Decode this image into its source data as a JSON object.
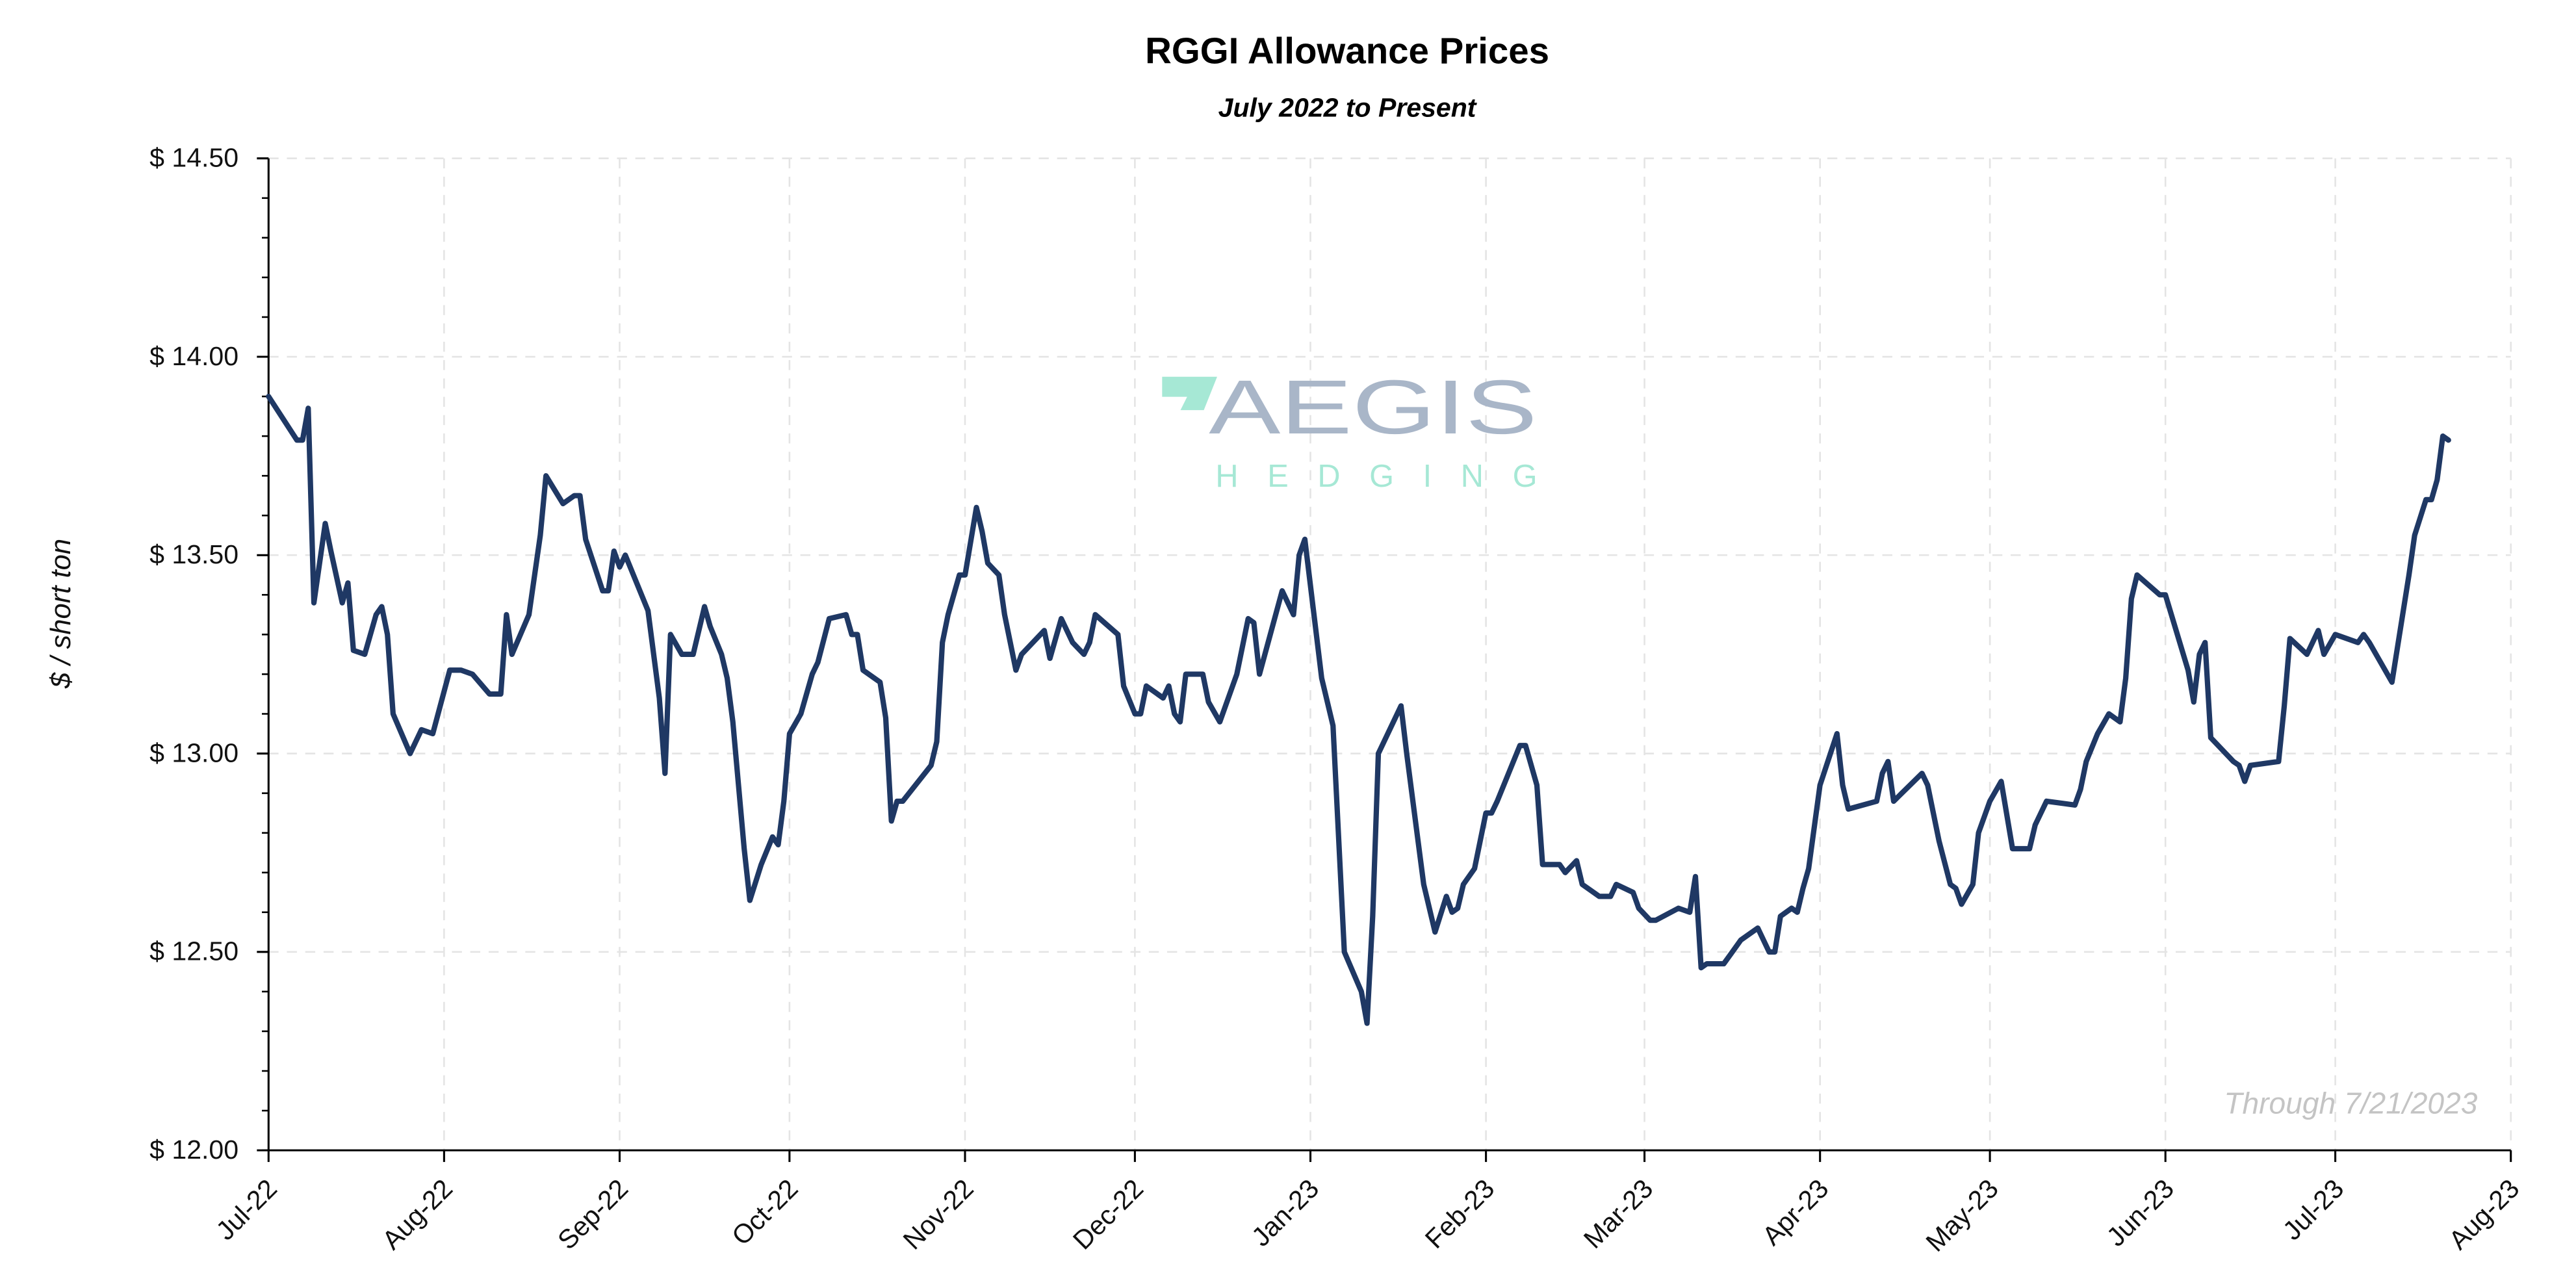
{
  "chart_data": {
    "type": "line",
    "title": "RGGI Allowance Prices",
    "subtitle": "July 2022 to Present",
    "ylabel": "$ / short ton",
    "xlabel": "",
    "annotation": "Through 7/21/2023",
    "watermark": {
      "line1": "AEGIS",
      "line2": "HEDGING"
    },
    "ylim": [
      12.0,
      14.5
    ],
    "xlim": [
      "2022-07-01",
      "2023-08-01"
    ],
    "y_ticks": [
      12.0,
      12.5,
      13.0,
      13.5,
      14.0,
      14.5
    ],
    "y_tick_labels": [
      "$ 12.00",
      "$ 12.50",
      "$ 13.00",
      "$ 13.50",
      "$ 14.00",
      "$ 14.50"
    ],
    "y_minor_step": 0.1,
    "x_ticks": [
      "2022-07-01",
      "2022-08-01",
      "2022-09-01",
      "2022-10-01",
      "2022-11-01",
      "2022-12-01",
      "2023-01-01",
      "2023-02-01",
      "2023-03-01",
      "2023-04-01",
      "2023-05-01",
      "2023-06-01",
      "2023-07-01",
      "2023-08-01"
    ],
    "x_tick_labels": [
      "Jul-22",
      "Aug-22",
      "Sep-22",
      "Oct-22",
      "Nov-22",
      "Dec-22",
      "Jan-23",
      "Feb-23",
      "Mar-23",
      "Apr-23",
      "May-23",
      "Jun-23",
      "Jul-23",
      "Aug-23"
    ],
    "grid": true,
    "colors": {
      "line": "#1f3864",
      "watermark_text": "#a9b6c8",
      "watermark_accent": "#a6e8d5",
      "annotation": "#c4c4c4",
      "grid": "#e4e4e4"
    },
    "points": [
      [
        "2022-07-01",
        13.9
      ],
      [
        "2022-07-06",
        13.79
      ],
      [
        "2022-07-07",
        13.79
      ],
      [
        "2022-07-08",
        13.87
      ],
      [
        "2022-07-09",
        13.38
      ],
      [
        "2022-07-11",
        13.58
      ],
      [
        "2022-07-12",
        13.51
      ],
      [
        "2022-07-14",
        13.38
      ],
      [
        "2022-07-15",
        13.43
      ],
      [
        "2022-07-16",
        13.26
      ],
      [
        "2022-07-18",
        13.25
      ],
      [
        "2022-07-20",
        13.35
      ],
      [
        "2022-07-21",
        13.37
      ],
      [
        "2022-07-22",
        13.3
      ],
      [
        "2022-07-23",
        13.1
      ],
      [
        "2022-07-26",
        13.0
      ],
      [
        "2022-07-28",
        13.06
      ],
      [
        "2022-07-30",
        13.05
      ],
      [
        "2022-08-02",
        13.21
      ],
      [
        "2022-08-04",
        13.21
      ],
      [
        "2022-08-06",
        13.2
      ],
      [
        "2022-08-09",
        13.15
      ],
      [
        "2022-08-11",
        13.15
      ],
      [
        "2022-08-12",
        13.35
      ],
      [
        "2022-08-13",
        13.25
      ],
      [
        "2022-08-16",
        13.35
      ],
      [
        "2022-08-17",
        13.45
      ],
      [
        "2022-08-18",
        13.55
      ],
      [
        "2022-08-19",
        13.7
      ],
      [
        "2022-08-22",
        13.63
      ],
      [
        "2022-08-24",
        13.65
      ],
      [
        "2022-08-25",
        13.65
      ],
      [
        "2022-08-26",
        13.54
      ],
      [
        "2022-08-29",
        13.41
      ],
      [
        "2022-08-30",
        13.41
      ],
      [
        "2022-08-31",
        13.51
      ],
      [
        "2022-09-01",
        13.47
      ],
      [
        "2022-09-02",
        13.5
      ],
      [
        "2022-09-06",
        13.36
      ],
      [
        "2022-09-08",
        13.14
      ],
      [
        "2022-09-09",
        12.95
      ],
      [
        "2022-09-10",
        13.3
      ],
      [
        "2022-09-12",
        13.25
      ],
      [
        "2022-09-14",
        13.25
      ],
      [
        "2022-09-16",
        13.37
      ],
      [
        "2022-09-17",
        13.32
      ],
      [
        "2022-09-19",
        13.25
      ],
      [
        "2022-09-20",
        13.19
      ],
      [
        "2022-09-21",
        13.08
      ],
      [
        "2022-09-23",
        12.76
      ],
      [
        "2022-09-24",
        12.63
      ],
      [
        "2022-09-26",
        12.72
      ],
      [
        "2022-09-28",
        12.79
      ],
      [
        "2022-09-29",
        12.77
      ],
      [
        "2022-09-30",
        12.88
      ],
      [
        "2022-10-01",
        13.05
      ],
      [
        "2022-10-03",
        13.1
      ],
      [
        "2022-10-05",
        13.2
      ],
      [
        "2022-10-06",
        13.23
      ],
      [
        "2022-10-08",
        13.34
      ],
      [
        "2022-10-11",
        13.35
      ],
      [
        "2022-10-12",
        13.3
      ],
      [
        "2022-10-13",
        13.3
      ],
      [
        "2022-10-14",
        13.21
      ],
      [
        "2022-10-17",
        13.18
      ],
      [
        "2022-10-18",
        13.09
      ],
      [
        "2022-10-19",
        12.83
      ],
      [
        "2022-10-20",
        12.88
      ],
      [
        "2022-10-21",
        12.88
      ],
      [
        "2022-10-26",
        12.97
      ],
      [
        "2022-10-27",
        13.03
      ],
      [
        "2022-10-28",
        13.28
      ],
      [
        "2022-10-29",
        13.35
      ],
      [
        "2022-10-31",
        13.45
      ],
      [
        "2022-11-01",
        13.45
      ],
      [
        "2022-11-03",
        13.62
      ],
      [
        "2022-11-04",
        13.56
      ],
      [
        "2022-11-05",
        13.48
      ],
      [
        "2022-11-07",
        13.45
      ],
      [
        "2022-11-08",
        13.35
      ],
      [
        "2022-11-10",
        13.21
      ],
      [
        "2022-11-11",
        13.25
      ],
      [
        "2022-11-15",
        13.31
      ],
      [
        "2022-11-16",
        13.24
      ],
      [
        "2022-11-18",
        13.34
      ],
      [
        "2022-11-20",
        13.28
      ],
      [
        "2022-11-22",
        13.25
      ],
      [
        "2022-11-23",
        13.28
      ],
      [
        "2022-11-24",
        13.35
      ],
      [
        "2022-11-28",
        13.3
      ],
      [
        "2022-11-29",
        13.17
      ],
      [
        "2022-12-01",
        13.1
      ],
      [
        "2022-12-02",
        13.1
      ],
      [
        "2022-12-03",
        13.17
      ],
      [
        "2022-12-06",
        13.14
      ],
      [
        "2022-12-07",
        13.17
      ],
      [
        "2022-12-08",
        13.1
      ],
      [
        "2022-12-09",
        13.08
      ],
      [
        "2022-12-10",
        13.2
      ],
      [
        "2022-12-13",
        13.2
      ],
      [
        "2022-12-14",
        13.13
      ],
      [
        "2022-12-16",
        13.08
      ],
      [
        "2022-12-19",
        13.2
      ],
      [
        "2022-12-21",
        13.34
      ],
      [
        "2022-12-22",
        13.33
      ],
      [
        "2022-12-23",
        13.2
      ],
      [
        "2022-12-27",
        13.41
      ],
      [
        "2022-12-29",
        13.35
      ],
      [
        "2022-12-30",
        13.5
      ],
      [
        "2022-12-31",
        13.54
      ],
      [
        "2023-01-03",
        13.19
      ],
      [
        "2023-01-05",
        13.07
      ],
      [
        "2023-01-07",
        12.5
      ],
      [
        "2023-01-10",
        12.4
      ],
      [
        "2023-01-11",
        12.32
      ],
      [
        "2023-01-12",
        12.59
      ],
      [
        "2023-01-13",
        13.0
      ],
      [
        "2023-01-17",
        13.12
      ],
      [
        "2023-01-18",
        13.0
      ],
      [
        "2023-01-20",
        12.78
      ],
      [
        "2023-01-21",
        12.67
      ],
      [
        "2023-01-23",
        12.55
      ],
      [
        "2023-01-25",
        12.64
      ],
      [
        "2023-01-26",
        12.6
      ],
      [
        "2023-01-27",
        12.61
      ],
      [
        "2023-01-28",
        12.67
      ],
      [
        "2023-01-30",
        12.71
      ],
      [
        "2023-02-01",
        12.85
      ],
      [
        "2023-02-02",
        12.85
      ],
      [
        "2023-02-03",
        12.88
      ],
      [
        "2023-02-07",
        13.02
      ],
      [
        "2023-02-08",
        13.02
      ],
      [
        "2023-02-10",
        12.92
      ],
      [
        "2023-02-11",
        12.72
      ],
      [
        "2023-02-14",
        12.72
      ],
      [
        "2023-02-15",
        12.7
      ],
      [
        "2023-02-17",
        12.73
      ],
      [
        "2023-02-18",
        12.67
      ],
      [
        "2023-02-21",
        12.64
      ],
      [
        "2023-02-23",
        12.64
      ],
      [
        "2023-02-24",
        12.67
      ],
      [
        "2023-02-27",
        12.65
      ],
      [
        "2023-02-28",
        12.61
      ],
      [
        "2023-03-02",
        12.58
      ],
      [
        "2023-03-03",
        12.58
      ],
      [
        "2023-03-07",
        12.61
      ],
      [
        "2023-03-09",
        12.6
      ],
      [
        "2023-03-10",
        12.69
      ],
      [
        "2023-03-11",
        12.46
      ],
      [
        "2023-03-12",
        12.47
      ],
      [
        "2023-03-15",
        12.47
      ],
      [
        "2023-03-16",
        12.49
      ],
      [
        "2023-03-18",
        12.53
      ],
      [
        "2023-03-21",
        12.56
      ],
      [
        "2023-03-23",
        12.5
      ],
      [
        "2023-03-24",
        12.5
      ],
      [
        "2023-03-25",
        12.59
      ],
      [
        "2023-03-27",
        12.61
      ],
      [
        "2023-03-28",
        12.6
      ],
      [
        "2023-03-29",
        12.66
      ],
      [
        "2023-03-30",
        12.71
      ],
      [
        "2023-04-01",
        12.92
      ],
      [
        "2023-04-04",
        13.05
      ],
      [
        "2023-04-05",
        12.92
      ],
      [
        "2023-04-06",
        12.86
      ],
      [
        "2023-04-11",
        12.88
      ],
      [
        "2023-04-12",
        12.95
      ],
      [
        "2023-04-13",
        12.98
      ],
      [
        "2023-04-14",
        12.88
      ],
      [
        "2023-04-19",
        12.95
      ],
      [
        "2023-04-20",
        12.92
      ],
      [
        "2023-04-22",
        12.78
      ],
      [
        "2023-04-24",
        12.67
      ],
      [
        "2023-04-25",
        12.66
      ],
      [
        "2023-04-26",
        12.62
      ],
      [
        "2023-04-28",
        12.67
      ],
      [
        "2023-04-29",
        12.8
      ],
      [
        "2023-05-01",
        12.88
      ],
      [
        "2023-05-03",
        12.93
      ],
      [
        "2023-05-05",
        12.76
      ],
      [
        "2023-05-08",
        12.76
      ],
      [
        "2023-05-09",
        12.82
      ],
      [
        "2023-05-11",
        12.88
      ],
      [
        "2023-05-16",
        12.87
      ],
      [
        "2023-05-17",
        12.91
      ],
      [
        "2023-05-18",
        12.98
      ],
      [
        "2023-05-20",
        13.05
      ],
      [
        "2023-05-22",
        13.1
      ],
      [
        "2023-05-24",
        13.08
      ],
      [
        "2023-05-25",
        13.19
      ],
      [
        "2023-05-26",
        13.39
      ],
      [
        "2023-05-27",
        13.45
      ],
      [
        "2023-05-31",
        13.4
      ],
      [
        "2023-06-01",
        13.4
      ],
      [
        "2023-06-05",
        13.21
      ],
      [
        "2023-06-06",
        13.13
      ],
      [
        "2023-06-07",
        13.25
      ],
      [
        "2023-06-08",
        13.28
      ],
      [
        "2023-06-09",
        13.04
      ],
      [
        "2023-06-13",
        12.98
      ],
      [
        "2023-06-14",
        12.97
      ],
      [
        "2023-06-15",
        12.93
      ],
      [
        "2023-06-16",
        12.97
      ],
      [
        "2023-06-21",
        12.98
      ],
      [
        "2023-06-22",
        13.12
      ],
      [
        "2023-06-23",
        13.29
      ],
      [
        "2023-06-26",
        13.25
      ],
      [
        "2023-06-28",
        13.31
      ],
      [
        "2023-06-29",
        13.25
      ],
      [
        "2023-07-01",
        13.3
      ],
      [
        "2023-07-05",
        13.28
      ],
      [
        "2023-07-06",
        13.3
      ],
      [
        "2023-07-07",
        13.28
      ],
      [
        "2023-07-11",
        13.18
      ],
      [
        "2023-07-12",
        13.27
      ],
      [
        "2023-07-14",
        13.45
      ],
      [
        "2023-07-15",
        13.55
      ],
      [
        "2023-07-17",
        13.64
      ],
      [
        "2023-07-18",
        13.64
      ],
      [
        "2023-07-19",
        13.69
      ],
      [
        "2023-07-20",
        13.8
      ],
      [
        "2023-07-21",
        13.79
      ]
    ]
  }
}
